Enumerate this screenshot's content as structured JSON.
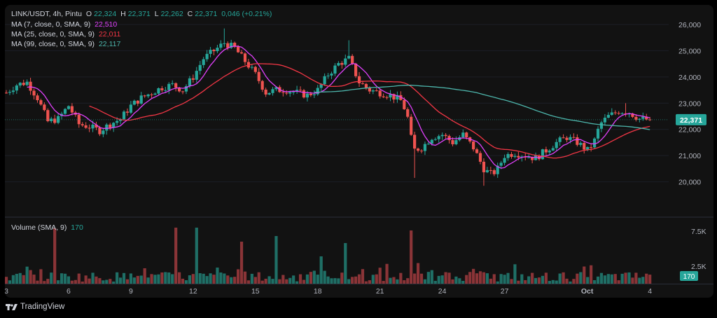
{
  "header": {
    "symbol": "LINK/USDT, 4h, Pintu",
    "ohlc": [
      {
        "k": "O",
        "v": "22,324"
      },
      {
        "k": "H",
        "v": "22,371"
      },
      {
        "k": "L",
        "v": "22,262"
      },
      {
        "k": "C",
        "v": "22,371"
      }
    ],
    "change": "0,046 (+0.21%)"
  },
  "indicators": [
    {
      "label": "MA (7, close, 0, SMA, 9)",
      "value": "22,510",
      "color": "#e040fb"
    },
    {
      "label": "MA (25, close, 0, SMA, 9)",
      "value": "22,011",
      "color": "#f23645"
    },
    {
      "label": "MA (99, close, 0, SMA, 9)",
      "value": "22,117",
      "color": "#4db6ac"
    }
  ],
  "volume_pane": {
    "label": "Volume (SMA, 9)",
    "value": "170",
    "badge": "170"
  },
  "price_badge": "22,371",
  "branding": "TradingView",
  "colors": {
    "up": "#26a69a",
    "down": "#ef5350",
    "ma7": "#e040fb",
    "ma25": "#f23645",
    "ma99": "#4db6ac"
  },
  "chart_data": {
    "type": "candlestick",
    "y_ticks": [
      {
        "label": "26,000",
        "value": 26000
      },
      {
        "label": "25,000",
        "value": 25000
      },
      {
        "label": "24,000",
        "value": 24000
      },
      {
        "label": "23,000",
        "value": 23000
      },
      {
        "label": "22,000",
        "value": 22000
      },
      {
        "label": "21,000",
        "value": 21000
      },
      {
        "label": "20,000",
        "value": 20000
      }
    ],
    "volume_ticks": [
      {
        "label": "7.5K",
        "value": 7500
      },
      {
        "label": "2.5K",
        "value": 2500
      }
    ],
    "x_ticks": [
      {
        "label": "3",
        "day": 3
      },
      {
        "label": "6",
        "day": 6
      },
      {
        "label": "9",
        "day": 9
      },
      {
        "label": "12",
        "day": 12
      },
      {
        "label": "15",
        "day": 15
      },
      {
        "label": "18",
        "day": 18
      },
      {
        "label": "21",
        "day": 21
      },
      {
        "label": "24",
        "day": 24
      },
      {
        "label": "27",
        "day": 27
      },
      {
        "label": "Oct",
        "day": 30.98
      },
      {
        "label": "4",
        "day": 34
      }
    ],
    "anchors_close": [
      [
        3.0,
        23400
      ],
      [
        3.5,
        23700
      ],
      [
        4.0,
        23800
      ],
      [
        4.5,
        23200
      ],
      [
        5.0,
        22300
      ],
      [
        5.5,
        22400
      ],
      [
        6.0,
        22900
      ],
      [
        6.5,
        22200
      ],
      [
        7.0,
        22100
      ],
      [
        7.5,
        21950
      ],
      [
        8.0,
        22200
      ],
      [
        8.5,
        22400
      ],
      [
        9.0,
        22900
      ],
      [
        9.5,
        23200
      ],
      [
        10.0,
        23400
      ],
      [
        10.5,
        23600
      ],
      [
        11.0,
        23700
      ],
      [
        11.5,
        23500
      ],
      [
        12.0,
        24000
      ],
      [
        12.5,
        24700
      ],
      [
        13.0,
        25000
      ],
      [
        13.5,
        25300
      ],
      [
        14.0,
        25100
      ],
      [
        14.5,
        24600
      ],
      [
        15.0,
        24100
      ],
      [
        15.5,
        23400
      ],
      [
        16.0,
        23500
      ],
      [
        16.5,
        23500
      ],
      [
        17.0,
        23400
      ],
      [
        17.5,
        23300
      ],
      [
        18.0,
        23500
      ],
      [
        18.5,
        24100
      ],
      [
        19.0,
        24500
      ],
      [
        19.5,
        24700
      ],
      [
        20.0,
        23800
      ],
      [
        20.5,
        23500
      ],
      [
        21.0,
        23400
      ],
      [
        21.5,
        23300
      ],
      [
        22.0,
        23100
      ],
      [
        22.3,
        22600
      ],
      [
        22.6,
        21200
      ],
      [
        23.0,
        21300
      ],
      [
        23.5,
        21700
      ],
      [
        24.0,
        21800
      ],
      [
        24.5,
        21500
      ],
      [
        25.0,
        21800
      ],
      [
        25.5,
        21300
      ],
      [
        26.0,
        20500
      ],
      [
        26.3,
        20300
      ],
      [
        26.6,
        20400
      ],
      [
        27.0,
        21000
      ],
      [
        27.5,
        21100
      ],
      [
        28.0,
        21000
      ],
      [
        28.5,
        20900
      ],
      [
        29.0,
        21200
      ],
      [
        29.5,
        21500
      ],
      [
        30.0,
        21700
      ],
      [
        30.5,
        21500
      ],
      [
        31.0,
        21200
      ],
      [
        31.3,
        21500
      ],
      [
        31.6,
        22200
      ],
      [
        32.0,
        22500
      ],
      [
        32.5,
        22700
      ],
      [
        33.0,
        22650
      ],
      [
        33.5,
        22400
      ],
      [
        34.0,
        22371
      ]
    ],
    "spikes": [
      {
        "day": 13.55,
        "high": 25850
      },
      {
        "day": 19.45,
        "high": 25400
      },
      {
        "day": 22.75,
        "low": 20150
      },
      {
        "day": 26.0,
        "low": 19850
      },
      {
        "day": 32.9,
        "high": 23000
      }
    ],
    "volume_spikes": [
      {
        "day": 5.3,
        "value": 7900
      },
      {
        "day": 9.7,
        "value": 2200
      },
      {
        "day": 11.2,
        "value": 8000
      },
      {
        "day": 12.2,
        "value": 8000
      },
      {
        "day": 14.3,
        "value": 6000
      },
      {
        "day": 16.0,
        "value": 6800
      },
      {
        "day": 19.4,
        "value": 5800
      },
      {
        "day": 22.55,
        "value": 7600
      },
      {
        "day": 18.2,
        "value": 3900
      },
      {
        "day": 13.2,
        "value": 2300
      }
    ],
    "ma99_start_day": 15.0,
    "last_close": 22371
  }
}
